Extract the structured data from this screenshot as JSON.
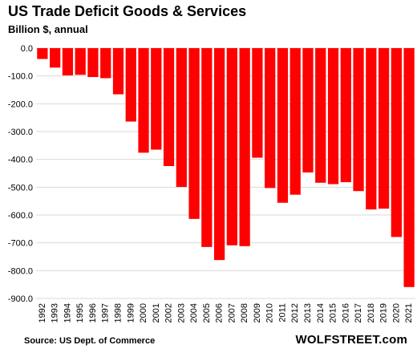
{
  "chart_data": {
    "type": "bar",
    "title": "US Trade Deficit Goods  & Services",
    "subtitle": "Billion $, annual",
    "categories": [
      "1992",
      "1993",
      "1994",
      "1995",
      "1996",
      "1997",
      "1998",
      "1999",
      "2000",
      "2001",
      "2002",
      "2003",
      "2004",
      "2005",
      "2006",
      "2007",
      "2008",
      "2009",
      "2010",
      "2011",
      "2012",
      "2013",
      "2014",
      "2015",
      "2016",
      "2017",
      "2018",
      "2019",
      "2020",
      "2021"
    ],
    "values": [
      -39,
      -70,
      -98,
      -96,
      -104,
      -108,
      -166,
      -264,
      -376,
      -365,
      -424,
      -499,
      -614,
      -715,
      -762,
      -709,
      -712,
      -394,
      -503,
      -556,
      -527,
      -447,
      -484,
      -489,
      -482,
      -514,
      -580,
      -577,
      -679,
      -859
    ],
    "ylim": [
      -900,
      0
    ],
    "yticks": [
      "0.0",
      "-100.0",
      "-200.0",
      "-300.0",
      "-400.0",
      "-500.0",
      "-600.0",
      "-700.0",
      "-800.0",
      "-900.0"
    ],
    "bar_color": "#ff0000",
    "grid_color": "#d9d9d9",
    "grid": true,
    "source": "Source: US Dept. of Commerce",
    "watermark": "WOLFSTREET.com"
  }
}
